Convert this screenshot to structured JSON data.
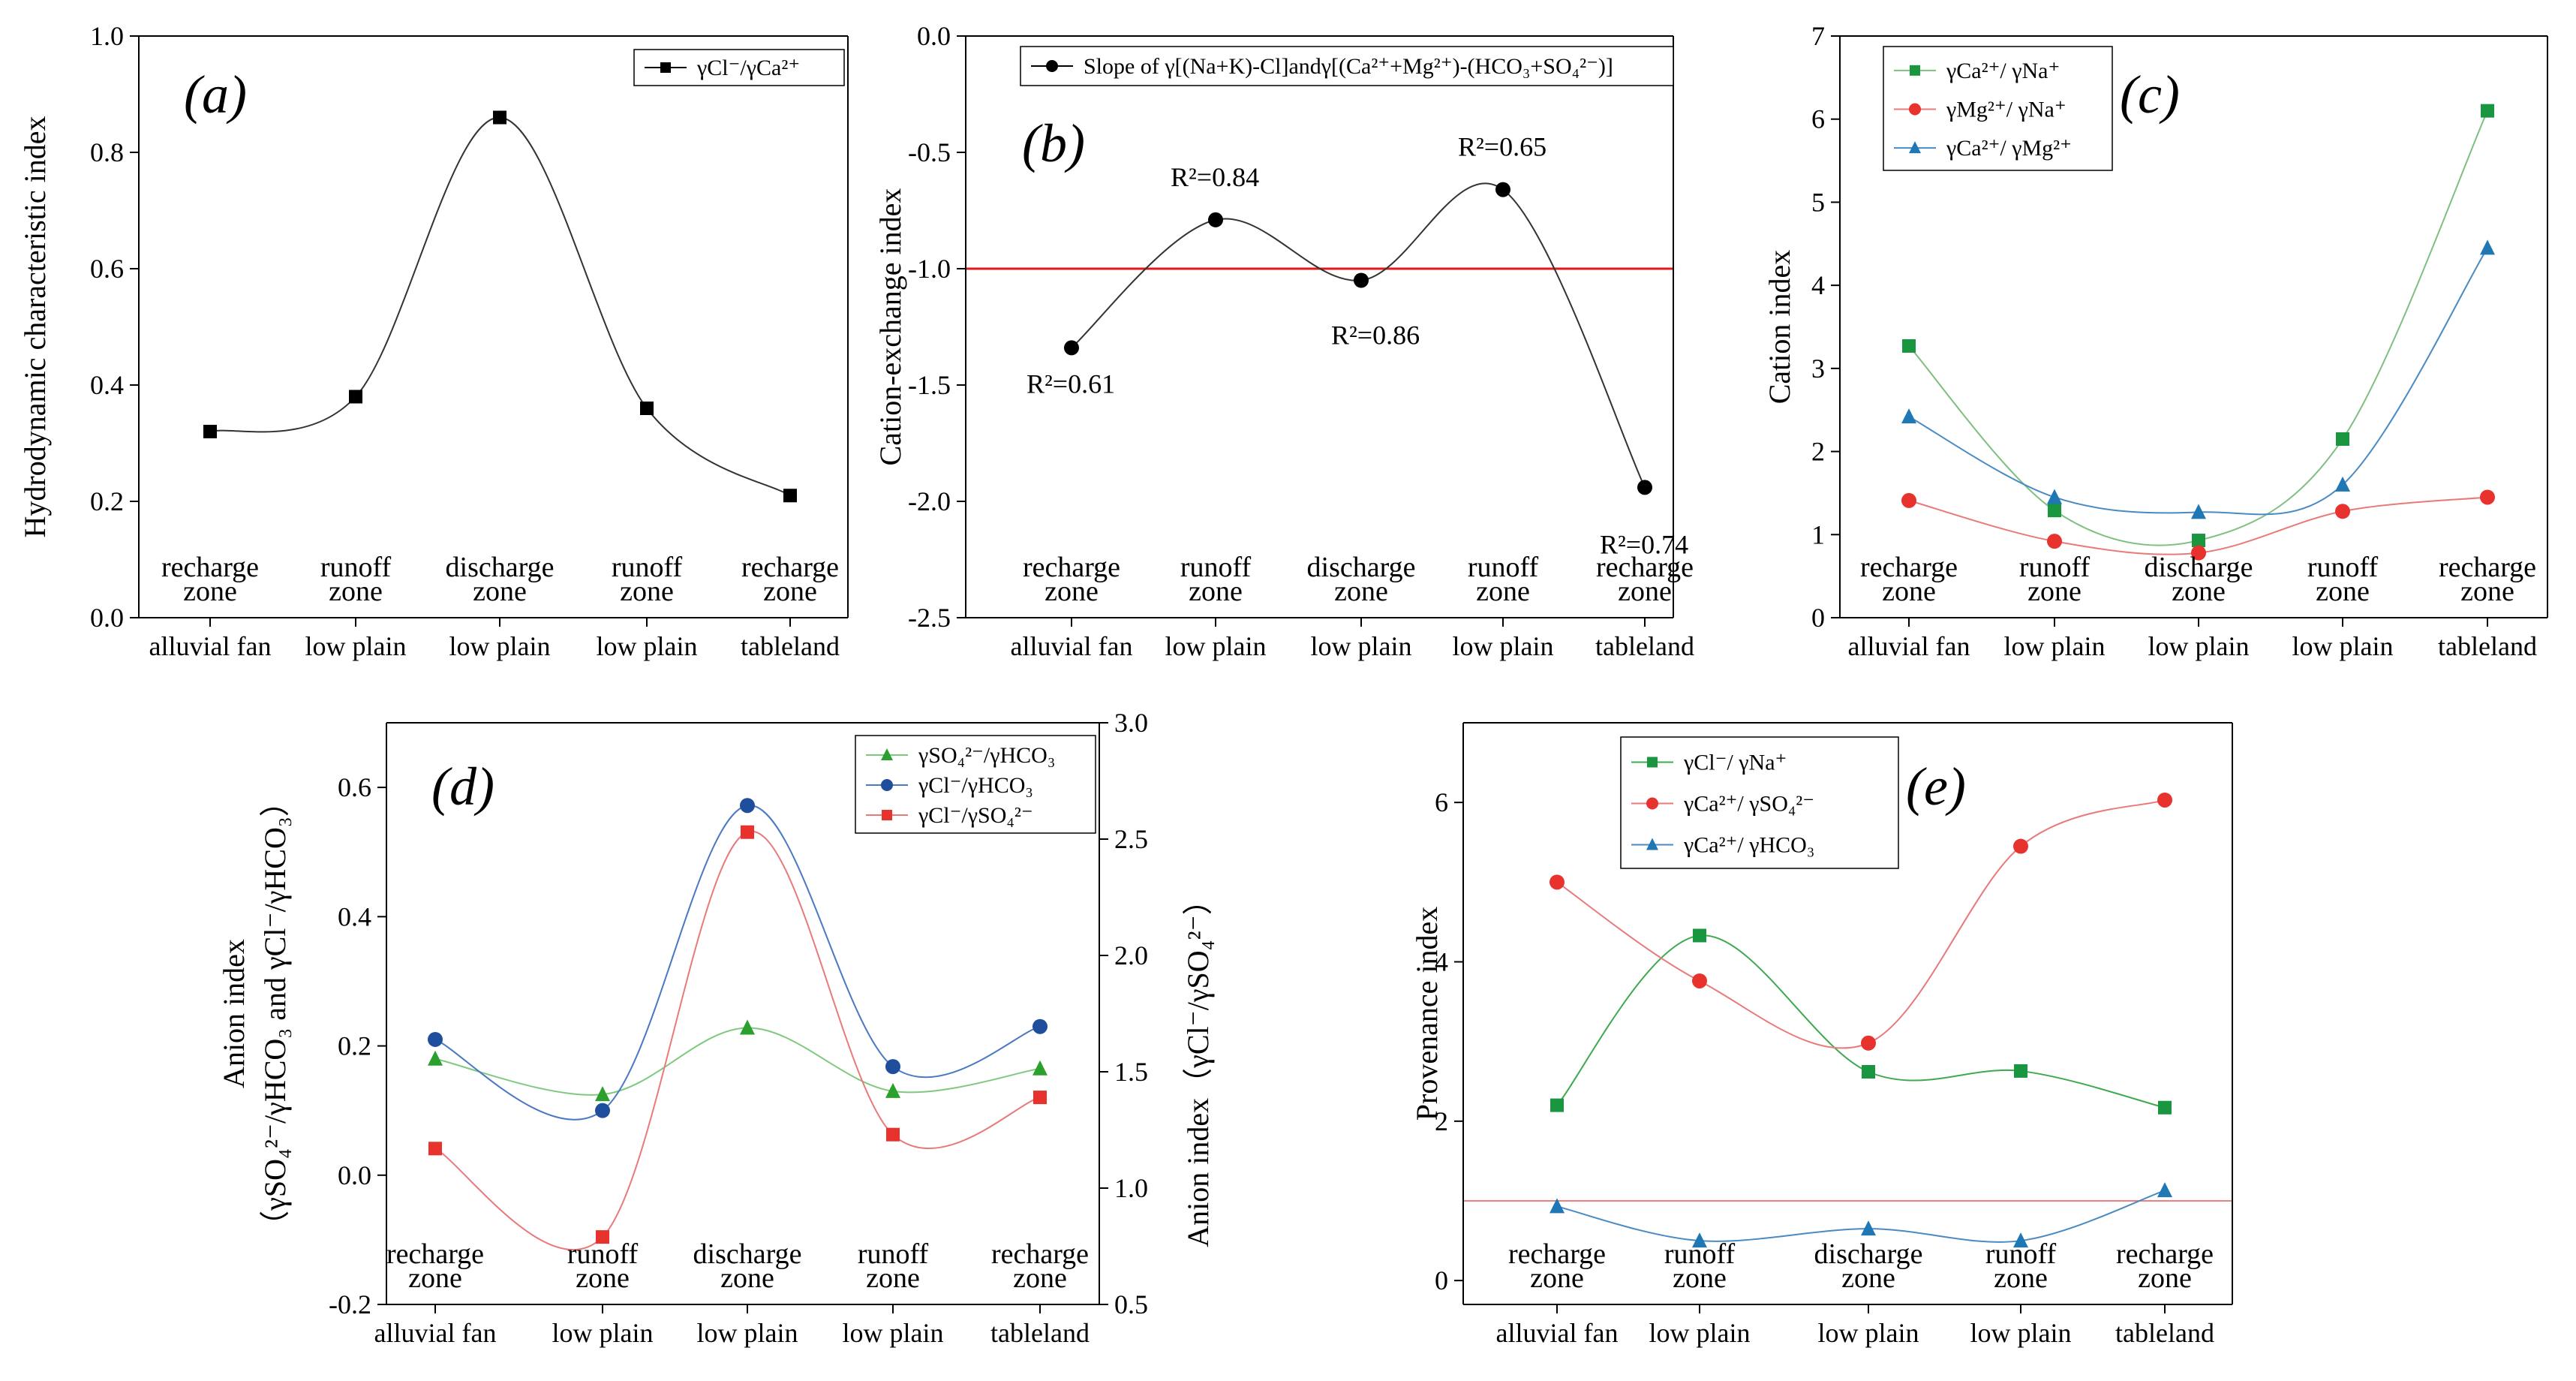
{
  "figure": {
    "panels": [
      "a",
      "b",
      "c",
      "d",
      "e"
    ]
  },
  "chart_data": [
    {
      "id": "a",
      "type": "line",
      "panel_label": "(a)",
      "ylabel": "Hydrodynamic characteristic index",
      "ylim": [
        0,
        1.0
      ],
      "yticks": [
        "0.0",
        "0.2",
        "0.4",
        "0.6",
        "0.8",
        "1.0"
      ],
      "categories": [
        "alluvial fan",
        "low plain",
        "low plain",
        "low plain",
        "tableland"
      ],
      "zones": [
        "recharge zone",
        "runoff zone",
        "discharge zone",
        "runoff zone",
        "recharge zone"
      ],
      "series": [
        {
          "name": "γCl⁻/γCa²⁺",
          "color": "#000000",
          "marker": "square",
          "values": [
            0.32,
            0.38,
            0.86,
            0.36,
            0.21
          ]
        }
      ],
      "legend_position": "top-right"
    },
    {
      "id": "b",
      "type": "line",
      "panel_label": "(b)",
      "ylabel": "Cation-exchange index",
      "ylim": [
        -2.5,
        0.0
      ],
      "yticks": [
        "-2.5",
        "-2.0",
        "-1.5",
        "-1.0",
        "-0.5",
        "0.0"
      ],
      "categories": [
        "alluvial fan",
        "low plain",
        "low plain",
        "low plain",
        "tableland"
      ],
      "zones": [
        "recharge zone",
        "runoff zone",
        "discharge zone",
        "runoff zone",
        "recharge zone"
      ],
      "series": [
        {
          "name": "Slope of γ[(Na+K)-Cl]andγ[(Ca²⁺+Mg²⁺)-(HCO₃+SO₄²⁻)]",
          "color": "#000000",
          "marker": "circle",
          "values": [
            -1.34,
            -0.79,
            -1.05,
            -0.66,
            -1.94
          ]
        }
      ],
      "r2_labels": [
        "R²=0.61",
        "R²=0.84",
        "R²=0.86",
        "R²=0.65",
        "R²=0.74"
      ],
      "reference_line": {
        "y": -1.0,
        "color": "#e0191f"
      },
      "legend_position": "top"
    },
    {
      "id": "c",
      "type": "line",
      "panel_label": "(c)",
      "ylabel": "Cation  index",
      "ylim": [
        0,
        7
      ],
      "yticks": [
        "0",
        "1",
        "2",
        "3",
        "4",
        "5",
        "6",
        "7"
      ],
      "categories": [
        "alluvial fan",
        "low plain",
        "low plain",
        "low plain",
        "tableland"
      ],
      "zones": [
        "recharge zone",
        "runoff zone",
        "discharge zone",
        "runoff zone",
        "recharge zone"
      ],
      "series": [
        {
          "name": "γCa²⁺/ γNa⁺",
          "color": "#1a9641",
          "line_color": "#7fbf7f",
          "marker": "square",
          "values": [
            3.27,
            1.29,
            0.93,
            2.15,
            6.1
          ]
        },
        {
          "name": "γMg²⁺/ γNa⁺",
          "color": "#e8322e",
          "line_color": "#e87a7a",
          "marker": "circle",
          "values": [
            1.41,
            0.92,
            0.78,
            1.28,
            1.45
          ]
        },
        {
          "name": "γCa²⁺/ γMg²⁺",
          "color": "#1f77b4",
          "line_color": "#4a8ac2",
          "marker": "triangle",
          "values": [
            2.42,
            1.45,
            1.27,
            1.6,
            4.45
          ]
        }
      ],
      "legend_position": "top-left"
    },
    {
      "id": "d",
      "type": "line",
      "panel_label": "(d)",
      "ylabel": "Anion index",
      "ylabel_line2": "（γSO₄²⁻/γHCO₃ and γCl⁻/γHCO₃）",
      "ylim": [
        -0.2,
        0.7
      ],
      "yticks": [
        "-0.2",
        "0.0",
        "0.2",
        "0.4",
        "0.6"
      ],
      "y2label": "Anion index（γCl⁻/γSO₄²⁻）",
      "y2lim": [
        0.5,
        3.0
      ],
      "y2ticks": [
        "0.5",
        "1.0",
        "1.5",
        "2.0",
        "2.5",
        "3.0"
      ],
      "categories": [
        "alluvial fan",
        "low plain",
        "low plain",
        "low plain",
        "tableland"
      ],
      "zones": [
        "recharge zone",
        "runoff zone",
        "discharge zone",
        "runoff zone",
        "recharge zone"
      ],
      "series": [
        {
          "name": "γSO₄²⁻/γHCO₃",
          "color": "#2ca02c",
          "line_color": "#7fc97f",
          "marker": "triangle",
          "axis": "left",
          "values": [
            0.18,
            0.125,
            0.228,
            0.13,
            0.165
          ]
        },
        {
          "name": "γCl⁻/γHCO₃",
          "color": "#1f4e9c",
          "line_color": "#4a78c2",
          "marker": "circle",
          "axis": "left",
          "values": [
            0.21,
            0.1,
            0.572,
            0.168,
            0.23
          ]
        },
        {
          "name": "γCl⁻/γSO₄²⁻",
          "color": "#e8322e",
          "line_color": "#e87a7a",
          "marker": "square",
          "axis": "right",
          "values": [
            1.17,
            0.79,
            2.53,
            1.23,
            1.39
          ]
        }
      ],
      "legend_position": "top-right"
    },
    {
      "id": "e",
      "type": "line",
      "panel_label": "(e)",
      "ylabel": "Provenance  index",
      "ylim": [
        -0.3,
        7.0
      ],
      "yticks": [
        "0",
        "2",
        "4",
        "6"
      ],
      "categories": [
        "alluvial fan",
        "low plain",
        "low plain",
        "low plain",
        "tableland"
      ],
      "zones": [
        "recharge zone",
        "runoff zone",
        "discharge zone",
        "runoff zone",
        "recharge zone"
      ],
      "series": [
        {
          "name": "γCl⁻/ γNa⁺",
          "color": "#1a9641",
          "line_color": "#3fa94f",
          "marker": "square",
          "values": [
            2.2,
            4.33,
            2.62,
            2.63,
            2.17
          ]
        },
        {
          "name": "γCa²⁺/ γSO₄²⁻",
          "color": "#e8322e",
          "line_color": "#e87a7a",
          "marker": "circle",
          "values": [
            5.0,
            3.76,
            2.98,
            5.45,
            6.03
          ]
        },
        {
          "name": "γCa²⁺/ γHCO₃",
          "color": "#1f77b4",
          "line_color": "#4a8ac2",
          "marker": "triangle",
          "values": [
            0.93,
            0.5,
            0.65,
            0.5,
            1.13
          ]
        }
      ],
      "reference_line": {
        "y": 1.0,
        "color": "#f08080"
      },
      "legend_position": "top-left"
    }
  ]
}
